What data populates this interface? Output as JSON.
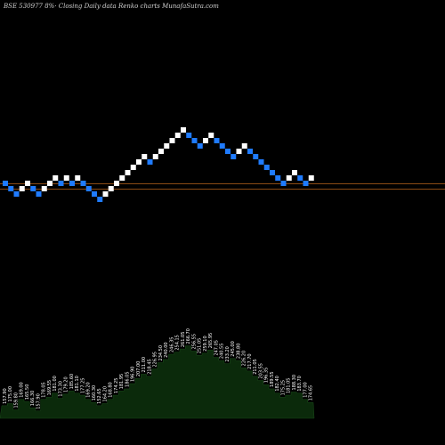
{
  "chart_data": {
    "type": "renko",
    "title": "BSE 530977 8%· Closing Daily data Renko charts MunafaSutra.com",
    "colors": {
      "background": "#000000",
      "up_brick": "#ffffff",
      "down_brick": "#1f7bff",
      "ref_line": "#8a4a14",
      "volume_area": "#0b2a0b",
      "volume_label": "#ffffff"
    },
    "reference_levels": [
      1,
      0
    ],
    "bricks": [
      {
        "dir": "down",
        "level": 1
      },
      {
        "dir": "down",
        "level": 0
      },
      {
        "dir": "down",
        "level": -1
      },
      {
        "dir": "up",
        "level": 0
      },
      {
        "dir": "up",
        "level": 1
      },
      {
        "dir": "down",
        "level": 0
      },
      {
        "dir": "down",
        "level": -1
      },
      {
        "dir": "up",
        "level": 0
      },
      {
        "dir": "up",
        "level": 1
      },
      {
        "dir": "up",
        "level": 2
      },
      {
        "dir": "down",
        "level": 1
      },
      {
        "dir": "up",
        "level": 2
      },
      {
        "dir": "down",
        "level": 1
      },
      {
        "dir": "up",
        "level": 2
      },
      {
        "dir": "down",
        "level": 1
      },
      {
        "dir": "down",
        "level": 0
      },
      {
        "dir": "down",
        "level": -1
      },
      {
        "dir": "down",
        "level": -2
      },
      {
        "dir": "up",
        "level": -1
      },
      {
        "dir": "up",
        "level": 0
      },
      {
        "dir": "up",
        "level": 1
      },
      {
        "dir": "up",
        "level": 2
      },
      {
        "dir": "up",
        "level": 3
      },
      {
        "dir": "up",
        "level": 4
      },
      {
        "dir": "up",
        "level": 5
      },
      {
        "dir": "up",
        "level": 6
      },
      {
        "dir": "down",
        "level": 5
      },
      {
        "dir": "up",
        "level": 6
      },
      {
        "dir": "up",
        "level": 7
      },
      {
        "dir": "up",
        "level": 8
      },
      {
        "dir": "up",
        "level": 9
      },
      {
        "dir": "up",
        "level": 10
      },
      {
        "dir": "up",
        "level": 11
      },
      {
        "dir": "down",
        "level": 10
      },
      {
        "dir": "down",
        "level": 9
      },
      {
        "dir": "down",
        "level": 8
      },
      {
        "dir": "up",
        "level": 9
      },
      {
        "dir": "up",
        "level": 10
      },
      {
        "dir": "down",
        "level": 9
      },
      {
        "dir": "down",
        "level": 8
      },
      {
        "dir": "down",
        "level": 7
      },
      {
        "dir": "down",
        "level": 6
      },
      {
        "dir": "up",
        "level": 7
      },
      {
        "dir": "up",
        "level": 8
      },
      {
        "dir": "down",
        "level": 7
      },
      {
        "dir": "down",
        "level": 6
      },
      {
        "dir": "down",
        "level": 5
      },
      {
        "dir": "down",
        "level": 4
      },
      {
        "dir": "down",
        "level": 3
      },
      {
        "dir": "down",
        "level": 2
      },
      {
        "dir": "down",
        "level": 1
      },
      {
        "dir": "up",
        "level": 2
      },
      {
        "dir": "up",
        "level": 3
      },
      {
        "dir": "down",
        "level": 2
      },
      {
        "dir": "down",
        "level": 1
      },
      {
        "dir": "up",
        "level": 2
      }
    ],
    "volume": [
      12,
      14,
      8,
      18,
      16,
      10,
      7,
      18,
      20,
      24,
      19,
      23,
      26,
      24,
      22,
      18,
      15,
      12,
      14,
      18,
      22,
      26,
      28,
      33,
      38,
      42,
      40,
      47,
      53,
      56,
      61,
      63,
      66,
      69,
      64,
      60,
      62,
      65,
      58,
      55,
      52,
      57,
      55,
      48,
      45,
      40,
      36,
      32,
      28,
      24,
      20,
      22,
      25,
      24,
      18,
      15
    ],
    "price_labels": [
      "157.90",
      "175.00",
      "159.80",
      "169.00",
      "165.50",
      "166.30",
      "157.90",
      "178.05",
      "169.55",
      "181.00",
      "173.30",
      "179.20",
      "185.60",
      "181.10",
      "177.25",
      "169.20",
      "160.30",
      "152.65",
      "164.20",
      "168.80",
      "174.25",
      "181.95",
      "186.05",
      "196.90",
      "207.00",
      "211.00",
      "218.45",
      "226.95",
      "234.50",
      "240.00",
      "246.35",
      "254.15",
      "261.05",
      "266.70",
      "256.55",
      "251.05",
      "259.10",
      "265.95",
      "247.05",
      "240.55",
      "233.20",
      "245.00",
      "238.80",
      "226.20",
      "217.70",
      "211.05",
      "203.55",
      "196.35",
      "189.55",
      "182.40",
      "175.25",
      "181.05",
      "188.30",
      "183.70",
      "177.00",
      "174.65"
    ]
  }
}
